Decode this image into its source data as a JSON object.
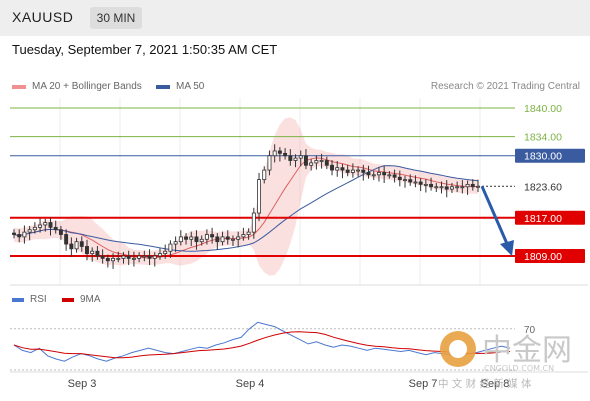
{
  "header": {
    "symbol": "XAUUSD",
    "timeframe": "30 MIN",
    "datetime": "Tuesday, September 7, 2021 1:50:35 AM CET"
  },
  "legend": {
    "ma20_label": "MA 20 + Bollinger Bands",
    "ma50_label": "MA 50",
    "credit": "Research © 2021 Trading Central"
  },
  "rsi_legend": {
    "rsi_label": "RSI",
    "ma_label": "9MA"
  },
  "watermark": {
    "name": "中金网",
    "domain": "CNGOLD.COM.CN",
    "tagline": "中 文 财 经 新 媒 体"
  },
  "colors": {
    "candle": "#333333",
    "bollinger": "#f4a6a6",
    "ma20": "#e06060",
    "ma50": "#3a5ba0",
    "target_line": "#7cb342",
    "support_line": "#e00000",
    "resistance_line": "#3a5ba0",
    "rsi": "#4a78d0",
    "rsi_ma": "#d00000",
    "forecast_arrow": "#2a5aa8"
  },
  "chart_data": {
    "type": "candlestick",
    "y_unit": "USD",
    "ylim": [
      1803,
      1846
    ],
    "x_ticks": [
      "Sep 3",
      "Sep 4",
      "Sep 7",
      "Sep 8"
    ],
    "current_price": 1823.6,
    "levels": [
      {
        "value": 1840.0,
        "label": "1840.00",
        "kind": "target"
      },
      {
        "value": 1834.0,
        "label": "1834.00",
        "kind": "target"
      },
      {
        "value": 1830.0,
        "label": "1830.00",
        "kind": "pivot"
      },
      {
        "value": 1823.6,
        "label": "1823.60",
        "kind": "last"
      },
      {
        "value": 1817.0,
        "label": "1817.00",
        "kind": "support"
      },
      {
        "value": 1809.0,
        "label": "1809.00",
        "kind": "support"
      }
    ],
    "forecast": {
      "from": 1823.6,
      "to": 1809.0
    },
    "closes": [
      1813.5,
      1813,
      1814,
      1814.5,
      1815,
      1815.5,
      1816,
      1815,
      1814.5,
      1813.5,
      1811.5,
      1810.5,
      1812,
      1811,
      1809.5,
      1810,
      1809,
      1808.5,
      1808,
      1808.5,
      1808.5,
      1809,
      1808.5,
      1808.5,
      1809,
      1809,
      1808.5,
      1809,
      1809.5,
      1810,
      1811.5,
      1812,
      1813,
      1812.5,
      1813,
      1812,
      1812.5,
      1813.5,
      1813,
      1812,
      1813,
      1812.5,
      1812.5,
      1813,
      1813.5,
      1814,
      1818,
      1825,
      1827,
      1830,
      1831,
      1830.5,
      1830,
      1829,
      1829.5,
      1830,
      1828,
      1828.5,
      1829,
      1829,
      1828,
      1827,
      1827.5,
      1827,
      1826.5,
      1827,
      1827,
      1826.5,
      1826,
      1826,
      1826.5,
      1826,
      1826,
      1825.5,
      1825,
      1825,
      1824.5,
      1824.5,
      1824,
      1824,
      1823.5,
      1823.5,
      1823.5,
      1823,
      1823.5,
      1823.5,
      1823.5,
      1824,
      1823.5,
      1823.6
    ],
    "rsi": {
      "level_label": "70",
      "values": [
        55,
        50,
        48,
        52,
        45,
        42,
        40,
        44,
        47,
        45,
        42,
        40,
        43,
        45,
        48,
        50,
        52,
        50,
        48,
        47,
        49,
        51,
        53,
        52,
        55,
        57,
        60,
        62,
        70,
        76,
        74,
        72,
        68,
        64,
        60,
        56,
        58,
        55,
        53,
        55,
        54,
        52,
        50,
        52,
        51,
        50,
        49,
        50,
        48,
        46,
        48,
        47,
        46,
        45,
        47,
        48,
        50,
        52,
        54,
        52
      ]
    }
  }
}
